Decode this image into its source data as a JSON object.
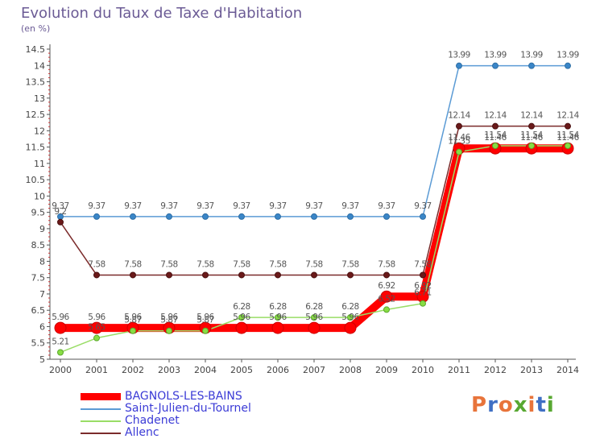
{
  "chart_data": {
    "type": "line",
    "title": "Evolution du Taux de Taxe d'Habitation",
    "subtitle": "(en %)",
    "xlabel": "",
    "ylabel": "",
    "x": [
      "2000",
      "2001",
      "2002",
      "2003",
      "2004",
      "2005",
      "2006",
      "2007",
      "2008",
      "2009",
      "2010",
      "2011",
      "2012",
      "2013",
      "2014"
    ],
    "ylim": [
      5,
      14.5
    ],
    "yticks": [
      "5",
      "5.5",
      "6",
      "6.5",
      "7",
      "7.5",
      "8",
      "8.5",
      "9",
      "9.5",
      "10",
      "10.5",
      "11",
      "11.5",
      "12",
      "12.5",
      "13",
      "13.5",
      "14",
      "14.5"
    ],
    "grid": false,
    "legend_position": "bottom-left",
    "series": [
      {
        "name": "BAGNOLS-LES-BAINS",
        "color": "#ff0000",
        "values": [
          5.96,
          5.96,
          5.96,
          5.96,
          5.96,
          5.96,
          5.96,
          5.96,
          5.96,
          6.92,
          6.92,
          11.46,
          11.46,
          11.46,
          11.46
        ],
        "labels": [
          "5.96",
          "5.96",
          "5.96",
          "5.96",
          "5.96",
          "5.96",
          "5.96",
          "5.96",
          "5.96",
          "6.92",
          "6.92",
          "11.46",
          "11.46",
          "11.46",
          "11.46"
        ]
      },
      {
        "name": "Saint-Julien-du-Tournel",
        "color": "#5b9bd5",
        "values": [
          9.37,
          9.37,
          9.37,
          9.37,
          9.37,
          9.37,
          9.37,
          9.37,
          9.37,
          9.37,
          9.37,
          13.99,
          13.99,
          13.99,
          13.99
        ],
        "labels": [
          "9.37",
          "9.37",
          "9.37",
          "9.37",
          "9.37",
          "9.37",
          "9.37",
          "9.37",
          "9.37",
          "9.37",
          "9.37",
          "13.99",
          "13.99",
          "13.99",
          "13.99"
        ]
      },
      {
        "name": "Chadenet",
        "color": "#99dd66",
        "values": [
          5.21,
          5.65,
          5.87,
          5.87,
          5.87,
          6.28,
          6.28,
          6.28,
          6.28,
          6.52,
          6.71,
          11.35,
          11.54,
          11.54,
          11.54
        ],
        "labels": [
          "5.21",
          "5.65",
          "5.87",
          "5.87",
          "5.87",
          "6.28",
          "6.28",
          "6.28",
          "6.28",
          "6.52",
          "6.71",
          "11.35",
          "11.54",
          "11.54",
          "11.54"
        ]
      },
      {
        "name": "Allenc",
        "color": "#7b2b2b",
        "values": [
          9.2,
          7.58,
          7.58,
          7.58,
          7.58,
          7.58,
          7.58,
          7.58,
          7.58,
          7.58,
          7.58,
          12.14,
          12.14,
          12.14,
          12.14
        ],
        "labels": [
          "9.2",
          "7.58",
          "7.58",
          "7.58",
          "7.58",
          "7.58",
          "7.58",
          "7.58",
          "7.58",
          "7.58",
          "7.58",
          "12.14",
          "12.14",
          "12.14",
          "12.14"
        ]
      }
    ]
  },
  "logo": {
    "letters": [
      "P",
      "r",
      "o",
      "x",
      "i",
      "t",
      "i"
    ],
    "colors": [
      "#e8743b",
      "#3f6fc4",
      "#e8743b",
      "#58a832",
      "#e8743b",
      "#3f6fc4",
      "#58a832"
    ]
  }
}
